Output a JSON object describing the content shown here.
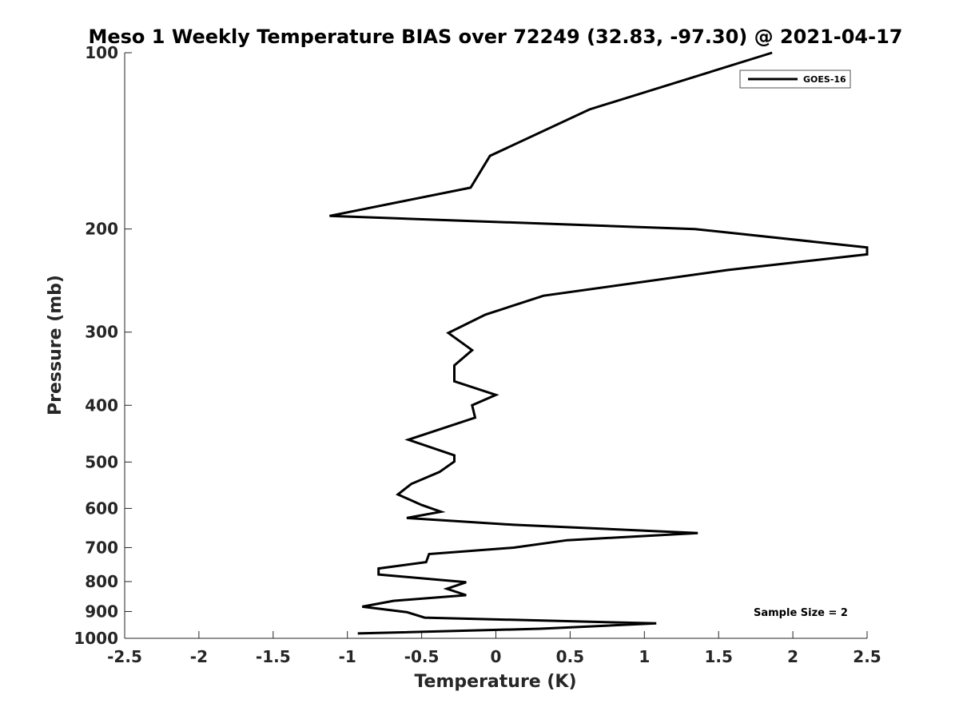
{
  "chart_data": {
    "type": "line",
    "title": "Meso 1 Weekly Temperature BIAS over 72249 (32.83, -97.30) @ 2021-04-17",
    "xlabel": "Temperature (K)",
    "ylabel": "Pressure (mb)",
    "xlim": [
      -2.5,
      2.5
    ],
    "ylim": [
      100,
      1000
    ],
    "y_scale": "log",
    "y_reversed": true,
    "grid": false,
    "legend_position": "top-right",
    "x_ticks": [
      "-2.5",
      "-2",
      "-1.5",
      "-1",
      "-0.5",
      "0",
      "0.5",
      "1",
      "1.5",
      "2",
      "2.5"
    ],
    "x_tick_values": [
      -2.5,
      -2,
      -1.5,
      -1,
      -0.5,
      0,
      0.5,
      1,
      1.5,
      2,
      2.5
    ],
    "y_ticks": [
      "100",
      "200",
      "300",
      "400",
      "500",
      "600",
      "700",
      "800",
      "900",
      "1000"
    ],
    "y_tick_values": [
      100,
      200,
      300,
      400,
      500,
      600,
      700,
      800,
      900,
      1000
    ],
    "annotation": "Sample Size = 2",
    "series": [
      {
        "name": "GOES-16",
        "color": "#000000",
        "points": [
          {
            "x": 1.86,
            "p": 100
          },
          {
            "x": 0.63,
            "p": 125
          },
          {
            "x": -0.04,
            "p": 150
          },
          {
            "x": -0.17,
            "p": 170
          },
          {
            "x": -1.12,
            "p": 190
          },
          {
            "x": 1.34,
            "p": 200
          },
          {
            "x": 2.5,
            "p": 215
          },
          {
            "x": 2.5,
            "p": 221
          },
          {
            "x": 1.56,
            "p": 235
          },
          {
            "x": 0.32,
            "p": 260
          },
          {
            "x": -0.07,
            "p": 280
          },
          {
            "x": -0.32,
            "p": 301
          },
          {
            "x": -0.16,
            "p": 322
          },
          {
            "x": -0.28,
            "p": 342
          },
          {
            "x": -0.28,
            "p": 364
          },
          {
            "x": 0.0,
            "p": 384
          },
          {
            "x": -0.16,
            "p": 400
          },
          {
            "x": -0.14,
            "p": 420
          },
          {
            "x": -0.59,
            "p": 458
          },
          {
            "x": -0.28,
            "p": 487
          },
          {
            "x": -0.28,
            "p": 499
          },
          {
            "x": -0.38,
            "p": 520
          },
          {
            "x": -0.57,
            "p": 545
          },
          {
            "x": -0.66,
            "p": 568
          },
          {
            "x": -0.5,
            "p": 592
          },
          {
            "x": -0.37,
            "p": 608
          },
          {
            "x": -0.6,
            "p": 623
          },
          {
            "x": 0.12,
            "p": 640
          },
          {
            "x": 1.36,
            "p": 661
          },
          {
            "x": 0.48,
            "p": 680
          },
          {
            "x": 0.12,
            "p": 700
          },
          {
            "x": -0.45,
            "p": 718
          },
          {
            "x": -0.47,
            "p": 741
          },
          {
            "x": -0.79,
            "p": 760
          },
          {
            "x": -0.79,
            "p": 778
          },
          {
            "x": -0.2,
            "p": 802
          },
          {
            "x": -0.33,
            "p": 823
          },
          {
            "x": -0.2,
            "p": 844
          },
          {
            "x": -0.69,
            "p": 863
          },
          {
            "x": -0.9,
            "p": 883
          },
          {
            "x": -0.6,
            "p": 902
          },
          {
            "x": -0.48,
            "p": 922
          },
          {
            "x": 1.08,
            "p": 943
          },
          {
            "x": 0.3,
            "p": 963
          },
          {
            "x": -0.93,
            "p": 981
          }
        ]
      }
    ]
  }
}
